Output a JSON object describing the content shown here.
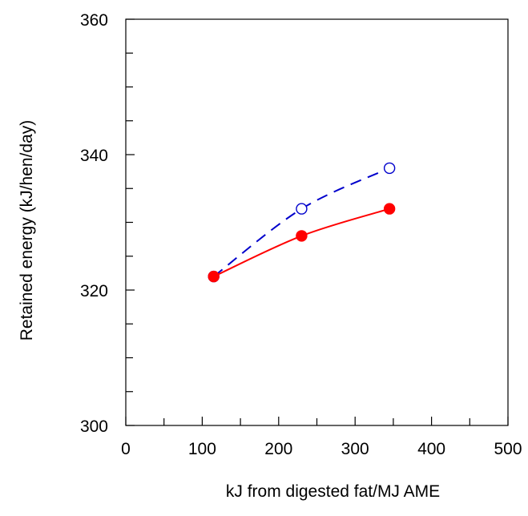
{
  "chart_data": {
    "type": "line",
    "title": "",
    "xlabel": "kJ from digested fat/MJ AME",
    "ylabel": "Retained energy  (kJ/hen/day)",
    "xlim": [
      0,
      500
    ],
    "ylim": [
      300,
      360
    ],
    "x_ticks": [
      "0",
      "100",
      "200",
      "300",
      "400",
      "500"
    ],
    "y_ticks": [
      "300",
      "320",
      "340",
      "360"
    ],
    "x_minor_step": 50,
    "y_minor_step": 5,
    "grid": false,
    "legend": "none",
    "series": [
      {
        "x": [
          115,
          230,
          345
        ],
        "y": [
          322,
          328,
          332
        ],
        "color": "#ff0000",
        "line_style": "solid",
        "marker": "filled-circle"
      },
      {
        "x": [
          115,
          230,
          345
        ],
        "y": [
          322,
          332,
          338
        ],
        "color": "#0000cc",
        "line_style": "dashed",
        "marker": "open-circle"
      }
    ]
  }
}
